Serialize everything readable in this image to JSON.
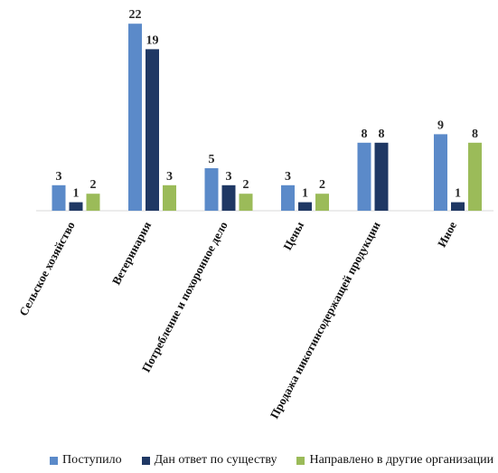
{
  "chart_data": {
    "type": "bar",
    "categories": [
      "Сельское хозяйство",
      "Ветеринария",
      "Потребление и похоронное дело",
      "Цены",
      "Продажа никотинсодержащей продукции",
      "Иное"
    ],
    "series": [
      {
        "name": "Поступило",
        "color": "#5b8ac9",
        "values": [
          3,
          22,
          5,
          3,
          8,
          9
        ]
      },
      {
        "name": "Дан ответ по существу",
        "color": "#1f3864",
        "values": [
          1,
          19,
          3,
          1,
          8,
          1
        ]
      },
      {
        "name": "Направлено в другие организации",
        "color": "#9bbb59",
        "values": [
          2,
          3,
          2,
          2,
          null,
          8
        ]
      }
    ],
    "ylim": [
      0,
      22
    ],
    "grid": false,
    "legend_position": "bottom",
    "data_labels": true
  }
}
